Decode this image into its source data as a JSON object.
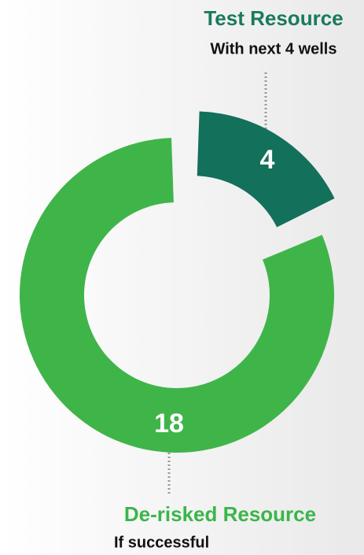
{
  "chart_data": {
    "type": "pie",
    "donut": true,
    "categories": [
      "Test Resource",
      "De-risked Resource"
    ],
    "subtitles": [
      "With next 4 wells",
      "If successful"
    ],
    "values": [
      4,
      18
    ],
    "colors": [
      "#13705a",
      "#3fb549"
    ]
  }
}
